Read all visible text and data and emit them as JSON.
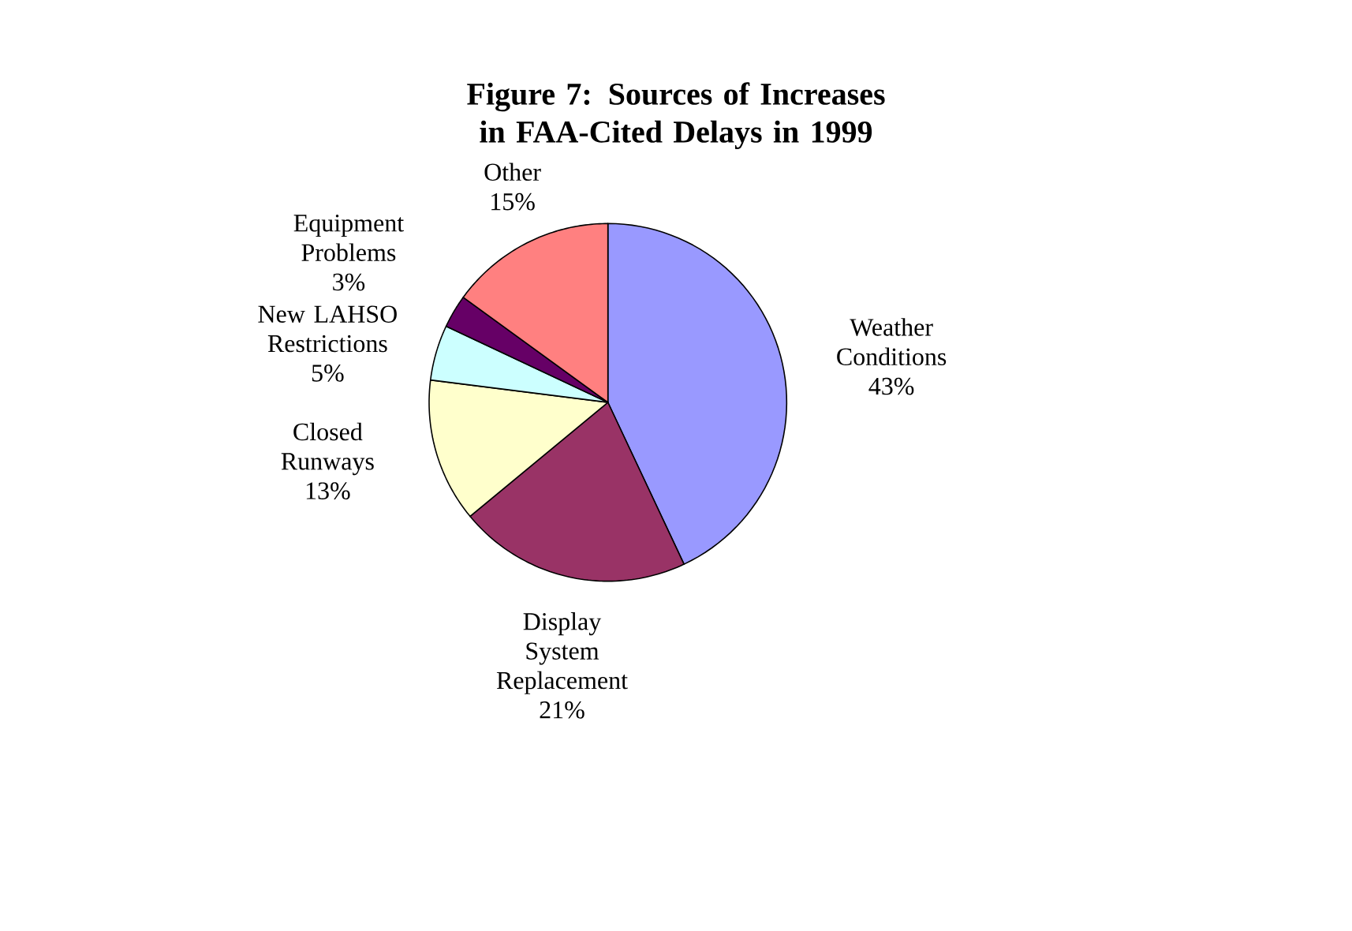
{
  "chart_data": {
    "type": "pie",
    "title": "Figure 7:  Sources of Increases in FAA-Cited Delays in 1999",
    "categories": [
      "Weather Conditions",
      "Display System Replacement",
      "Closed Runways",
      "New LAHSO Restrictions",
      "Equipment Problems",
      "Other"
    ],
    "values": [
      43,
      21,
      13,
      5,
      3,
      15
    ],
    "value_labels": [
      "43%",
      "21%",
      "13%",
      "5%",
      "3%",
      "15%"
    ],
    "colors": [
      "#9999ff",
      "#993366",
      "#ffffcc",
      "#ccffff",
      "#660066",
      "#ff8080"
    ]
  }
}
